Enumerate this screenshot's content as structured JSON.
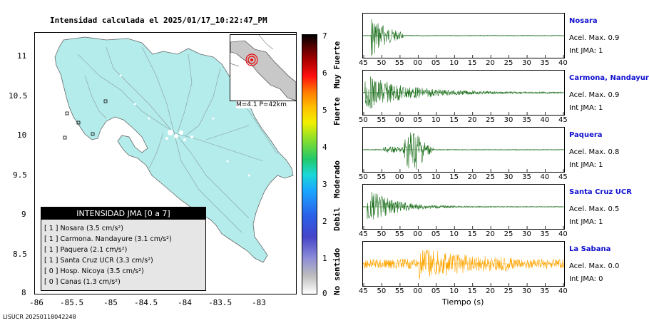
{
  "map": {
    "title": "Intensidad calculada el 2025/01/17_10:22:47_PM",
    "y_ticks": [
      "11",
      "10.5",
      "10",
      "9.5",
      "9",
      "8.5",
      "8"
    ],
    "x_ticks": [
      "-86",
      "-85.5",
      "-85",
      "-84.5",
      "-84",
      "-83.5",
      "-83"
    ],
    "inset_label": "M=4.1 P=42km",
    "land_color": "#b4ecec"
  },
  "legend": {
    "title": "INTENSIDAD JMA [0 a 7]",
    "rows": [
      {
        "code": "[ 1 ]",
        "text": "Nosara (3.5 cm/s²)"
      },
      {
        "code": "[ 1 ]",
        "text": "Carmona. Nandayure (3.1 cm/s²)"
      },
      {
        "code": "[ 1 ]",
        "text": "Paquera (2.1 cm/s²)"
      },
      {
        "code": "[ 1 ]",
        "text": "Santa Cruz UCR (3.3 cm/s²)"
      },
      {
        "code": "[ 0 ]",
        "text": "Hosp. Nicoya (3.5 cm/s²)"
      },
      {
        "code": "[ 0 ]",
        "text": "Canas (1.3 cm/s²)"
      }
    ]
  },
  "colorbar": {
    "ticks": [
      "7",
      "6",
      "5",
      "4",
      "3",
      "2",
      "1",
      "0"
    ],
    "labels": [
      "Muy Fuerte",
      "Fuerte",
      "Moderado",
      "Debil",
      "No sentido"
    ]
  },
  "stations": [
    {
      "name": "Nosara",
      "acc": "Acel. Max. 0.9",
      "int": "Int JMA: 1",
      "color": "#1a6e1a",
      "ticks": [
        "45",
        "50",
        "55",
        "00",
        "05",
        "10",
        "15",
        "20",
        "25",
        "30",
        "35",
        "40"
      ]
    },
    {
      "name": "Carmona, Nandayure",
      "acc": "Acel. Max. 0.9",
      "int": "Int JMA: 1",
      "color": "#1a6e1a",
      "ticks": [
        "50",
        "55",
        "00",
        "05",
        "10",
        "15",
        "20",
        "25",
        "30",
        "35",
        "40",
        "45"
      ]
    },
    {
      "name": "Paquera",
      "acc": "Acel. Max. 0.8",
      "int": "Int JMA: 1",
      "color": "#1a6e1a",
      "ticks": [
        "50",
        "55",
        "00",
        "05",
        "10",
        "15",
        "20",
        "25",
        "30",
        "35",
        "40",
        "45"
      ]
    },
    {
      "name": "Santa Cruz UCR",
      "acc": "Acel. Max. 0.5",
      "int": "Int JMA: 1",
      "color": "#1a6e1a",
      "ticks": [
        "45",
        "50",
        "55",
        "00",
        "05",
        "10",
        "15",
        "20",
        "25",
        "30",
        "35",
        "40"
      ]
    },
    {
      "name": "La Sabana",
      "acc": "Acel. Max. 0.0",
      "int": "Int JMA: 0",
      "color": "#ffa500",
      "ticks": [
        "45",
        "50",
        "55",
        "00",
        "05",
        "10",
        "15",
        "20",
        "25",
        "30",
        "35",
        "40"
      ]
    }
  ],
  "time_axis_label": "Tiempo (s)",
  "footer_id": "LISUCR 20250118042248"
}
